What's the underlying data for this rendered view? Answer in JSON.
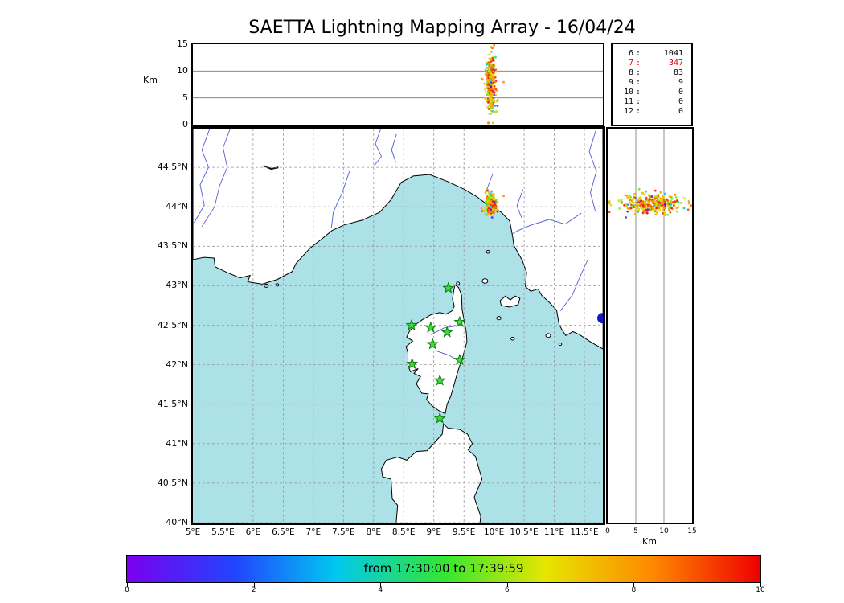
{
  "chart_data": {
    "type": "scatter",
    "title": "SAETTA Lightning Mapping Array - 16/04/24",
    "colorbar_label": "from 17:30:00 to 17:39:59",
    "colorbar_ticks": [
      "0",
      "2",
      "4",
      "6",
      "8",
      "10"
    ],
    "time_color_range": [
      0,
      10
    ],
    "axes": {
      "lon": [
        5,
        11.807
      ],
      "lat": [
        40,
        44.99
      ],
      "alt": [
        0,
        15
      ]
    },
    "panels": [
      {
        "id": "alt-lon",
        "x": "longitude_deg_E",
        "y": "altitude_km",
        "xlim": [
          5,
          11.807
        ],
        "ylim": [
          0,
          15
        ],
        "yticks": [
          0,
          5,
          10,
          15
        ]
      },
      {
        "id": "map",
        "x": "longitude_deg_E",
        "y": "latitude_deg_N",
        "xlim": [
          5,
          11.807
        ],
        "ylim": [
          40,
          44.99
        ]
      },
      {
        "id": "alt-lat",
        "x": "altitude_km",
        "y": "latitude_deg_N",
        "xlim": [
          0,
          15
        ],
        "ylim": [
          40,
          44.99
        ],
        "xticks": [
          0,
          5,
          10,
          15
        ]
      }
    ],
    "lightning_cluster": {
      "count": 320,
      "lon_mean": 9.95,
      "lon_std": 0.035,
      "lat_mean": 44.04,
      "lat_std": 0.06,
      "alt_mean_km": 7.9,
      "alt_std_km": 2.7,
      "alt_min_km": 0.3,
      "alt_max_km": 14.8,
      "t_mix": [
        {
          "p": 0.12,
          "lo": 0,
          "hi": 5.5
        },
        {
          "p": 0.6,
          "lo": 5.5,
          "hi": 8.5
        },
        {
          "p": 0.28,
          "lo": 8.5,
          "hi": 10
        }
      ]
    },
    "source_counts_by_min_stations": [
      {
        "label": "6",
        "value": "1041",
        "highlight": false
      },
      {
        "label": "7",
        "value": "347",
        "highlight": true
      },
      {
        "label": "8",
        "value": "83",
        "highlight": false
      },
      {
        "label": "9",
        "value": "9",
        "highlight": false
      },
      {
        "label": "10",
        "value": "0",
        "highlight": false
      },
      {
        "label": "11",
        "value": "0",
        "highlight": false
      },
      {
        "label": "12",
        "value": "0",
        "highlight": false
      }
    ],
    "stations_lon_lat": [
      [
        9.24,
        42.97
      ],
      [
        8.63,
        42.5
      ],
      [
        8.95,
        42.47
      ],
      [
        9.22,
        42.41
      ],
      [
        9.43,
        42.54
      ],
      [
        8.98,
        42.26
      ],
      [
        8.64,
        42.01
      ],
      [
        9.43,
        42.06
      ],
      [
        9.1,
        41.8
      ],
      [
        9.1,
        41.32
      ]
    ]
  },
  "panels_text": {
    "alt_lon_ylabel": "Km",
    "alt_lat_xlabel": "Km"
  },
  "axis_ticks": {
    "alt": [
      {
        "v": 0,
        "label": "0"
      },
      {
        "v": 5,
        "label": "5"
      },
      {
        "v": 10,
        "label": "10"
      },
      {
        "v": 15,
        "label": "15"
      }
    ],
    "lat": [
      {
        "v": 44.5,
        "label": "44.5°N"
      },
      {
        "v": 44,
        "label": "44°N"
      },
      {
        "v": 43.5,
        "label": "43.5°N"
      },
      {
        "v": 43,
        "label": "43°N"
      },
      {
        "v": 42.5,
        "label": "42.5°N"
      },
      {
        "v": 42,
        "label": "42°N"
      },
      {
        "v": 41.5,
        "label": "41.5°N"
      },
      {
        "v": 41,
        "label": "41°N"
      },
      {
        "v": 40.5,
        "label": "40.5°N"
      },
      {
        "v": 40,
        "label": "40°N"
      }
    ],
    "lon": [
      {
        "v": 5,
        "label": "5°E"
      },
      {
        "v": 5.5,
        "label": "5.5°E"
      },
      {
        "v": 6,
        "label": "6°E"
      },
      {
        "v": 6.5,
        "label": "6.5°E"
      },
      {
        "v": 7,
        "label": "7°E"
      },
      {
        "v": 7.5,
        "label": "7.5°E"
      },
      {
        "v": 8,
        "label": "8°E"
      },
      {
        "v": 8.5,
        "label": "8.5°E"
      },
      {
        "v": 9,
        "label": "9°E"
      },
      {
        "v": 9.5,
        "label": "9.5°E"
      },
      {
        "v": 10,
        "label": "10°E"
      },
      {
        "v": 10.5,
        "label": "10.5°E"
      },
      {
        "v": 11,
        "label": "11°E"
      },
      {
        "v": 11.5,
        "label": "11.5°E"
      }
    ]
  },
  "colorbar": {
    "stops": [
      [
        0,
        "#7a00ee"
      ],
      [
        0.17,
        "#2244ff"
      ],
      [
        0.33,
        "#00c8f0"
      ],
      [
        0.5,
        "#33e633"
      ],
      [
        0.66,
        "#e6e600"
      ],
      [
        0.83,
        "#ff8800"
      ],
      [
        1,
        "#ee0000"
      ]
    ]
  },
  "map": {
    "sea_color": "#ace1e8",
    "land_color": "#ffffff",
    "coast_color": "#000000",
    "grid_color": "#999999",
    "station_fill": "#3ddc3d",
    "station_edge": "#0e7a0e",
    "lake_color": "#1515c8",
    "coast_mainland": [
      [
        5.0,
        43.33
      ],
      [
        5.18,
        43.36
      ],
      [
        5.35,
        43.35
      ],
      [
        5.37,
        43.24
      ],
      [
        5.56,
        43.17
      ],
      [
        5.78,
        43.1
      ],
      [
        5.95,
        43.13
      ],
      [
        5.91,
        43.05
      ],
      [
        6.15,
        43.02
      ],
      [
        6.4,
        43.08
      ],
      [
        6.65,
        43.18
      ],
      [
        6.71,
        43.28
      ],
      [
        6.95,
        43.48
      ],
      [
        7.12,
        43.58
      ],
      [
        7.31,
        43.7
      ],
      [
        7.51,
        43.77
      ],
      [
        7.81,
        43.83
      ],
      [
        8.1,
        43.93
      ],
      [
        8.29,
        44.09
      ],
      [
        8.46,
        44.31
      ],
      [
        8.66,
        44.39
      ],
      [
        8.93,
        44.41
      ],
      [
        9.23,
        44.32
      ],
      [
        9.51,
        44.22
      ],
      [
        9.71,
        44.13
      ],
      [
        9.83,
        44.06
      ],
      [
        9.9,
        44.01
      ],
      [
        10.04,
        43.97
      ],
      [
        10.12,
        43.93
      ],
      [
        10.26,
        43.82
      ],
      [
        10.31,
        43.62
      ],
      [
        10.33,
        43.51
      ],
      [
        10.47,
        43.32
      ],
      [
        10.54,
        43.17
      ],
      [
        10.52,
        42.99
      ],
      [
        10.61,
        42.93
      ],
      [
        10.73,
        42.96
      ],
      [
        10.79,
        42.88
      ],
      [
        10.93,
        42.78
      ],
      [
        11.04,
        42.69
      ],
      [
        11.08,
        42.51
      ],
      [
        11.13,
        42.44
      ],
      [
        11.19,
        42.37
      ],
      [
        11.31,
        42.42
      ],
      [
        11.42,
        42.38
      ],
      [
        11.62,
        42.28
      ],
      [
        11.81,
        42.2
      ]
    ],
    "coast_corsica": [
      [
        9.35,
        43.01
      ],
      [
        9.41,
        42.98
      ],
      [
        9.46,
        42.88
      ],
      [
        9.47,
        42.7
      ],
      [
        9.5,
        42.57
      ],
      [
        9.54,
        42.41
      ],
      [
        9.55,
        42.29
      ],
      [
        9.48,
        42.1
      ],
      [
        9.4,
        41.92
      ],
      [
        9.33,
        41.73
      ],
      [
        9.28,
        41.6
      ],
      [
        9.22,
        41.5
      ],
      [
        9.19,
        41.38
      ],
      [
        9.08,
        41.42
      ],
      [
        8.97,
        41.48
      ],
      [
        8.88,
        41.56
      ],
      [
        8.91,
        41.63
      ],
      [
        8.8,
        41.64
      ],
      [
        8.71,
        41.76
      ],
      [
        8.78,
        41.85
      ],
      [
        8.67,
        41.89
      ],
      [
        8.74,
        41.95
      ],
      [
        8.61,
        41.91
      ],
      [
        8.57,
        42.0
      ],
      [
        8.57,
        42.15
      ],
      [
        8.54,
        42.23
      ],
      [
        8.65,
        42.3
      ],
      [
        8.55,
        42.35
      ],
      [
        8.6,
        42.43
      ],
      [
        8.72,
        42.52
      ],
      [
        8.81,
        42.57
      ],
      [
        8.95,
        42.63
      ],
      [
        9.1,
        42.66
      ],
      [
        9.2,
        42.64
      ],
      [
        9.3,
        42.68
      ],
      [
        9.34,
        42.74
      ],
      [
        9.31,
        42.83
      ],
      [
        9.33,
        42.93
      ]
    ],
    "coast_sardinia": [
      [
        8.37,
        39.95
      ],
      [
        8.4,
        40.22
      ],
      [
        8.31,
        40.3
      ],
      [
        8.29,
        40.55
      ],
      [
        8.15,
        40.58
      ],
      [
        8.13,
        40.68
      ],
      [
        8.21,
        40.79
      ],
      [
        8.4,
        40.83
      ],
      [
        8.55,
        40.79
      ],
      [
        8.71,
        40.9
      ],
      [
        8.89,
        40.91
      ],
      [
        9.14,
        41.12
      ],
      [
        9.16,
        41.25
      ],
      [
        9.23,
        41.2
      ],
      [
        9.31,
        41.19
      ],
      [
        9.43,
        41.18
      ],
      [
        9.56,
        41.12
      ],
      [
        9.64,
        41.0
      ],
      [
        9.57,
        40.92
      ],
      [
        9.69,
        40.84
      ],
      [
        9.8,
        40.55
      ],
      [
        9.67,
        40.32
      ],
      [
        9.78,
        40.08
      ],
      [
        9.76,
        39.95
      ]
    ],
    "coast_elba": [
      [
        10.1,
        42.81
      ],
      [
        10.19,
        42.87
      ],
      [
        10.27,
        42.82
      ],
      [
        10.35,
        42.87
      ],
      [
        10.43,
        42.84
      ],
      [
        10.4,
        42.76
      ],
      [
        10.25,
        42.73
      ],
      [
        10.12,
        42.75
      ]
    ],
    "small_islands": [
      [
        9.4,
        43.03,
        2
      ],
      [
        9.85,
        43.06,
        3.5
      ],
      [
        9.9,
        43.43,
        2.2
      ],
      [
        10.08,
        42.59,
        2.6
      ],
      [
        10.31,
        42.33,
        2.2
      ],
      [
        10.9,
        42.37,
        3
      ],
      [
        11.1,
        42.26,
        1.8
      ],
      [
        6.22,
        43.0,
        2.5
      ],
      [
        6.4,
        43.01,
        2
      ]
    ],
    "lake_circle": [
      11.8,
      42.59,
      6.5
    ],
    "lake_line": [
      [
        6.17,
        44.52
      ],
      [
        6.3,
        44.48
      ],
      [
        6.42,
        44.5
      ]
    ],
    "rivers": [
      {
        "c": "#4a5bd8",
        "p": [
          [
            5.28,
            44.99
          ],
          [
            5.15,
            44.72
          ],
          [
            5.26,
            44.5
          ],
          [
            5.12,
            44.28
          ],
          [
            5.19,
            44.02
          ],
          [
            5.02,
            43.8
          ]
        ]
      },
      {
        "c": "#7a4fd0",
        "p": [
          [
            5.62,
            44.99
          ],
          [
            5.5,
            44.75
          ],
          [
            5.57,
            44.5
          ],
          [
            5.44,
            44.26
          ],
          [
            5.36,
            44.0
          ],
          [
            5.15,
            43.75
          ]
        ]
      },
      {
        "c": "#4a5bd8",
        "p": [
          [
            7.6,
            44.45
          ],
          [
            7.48,
            44.18
          ],
          [
            7.33,
            43.93
          ],
          [
            7.3,
            43.73
          ]
        ]
      },
      {
        "c": "#7a4fd0",
        "p": [
          [
            8.12,
            44.99
          ],
          [
            8.03,
            44.8
          ],
          [
            8.13,
            44.64
          ],
          [
            8.01,
            44.52
          ]
        ]
      },
      {
        "c": "#4a5bd8",
        "p": [
          [
            8.38,
            44.92
          ],
          [
            8.3,
            44.72
          ],
          [
            8.37,
            44.56
          ]
        ]
      },
      {
        "c": "#7a4fd0",
        "p": [
          [
            9.98,
            44.42
          ],
          [
            9.89,
            44.24
          ],
          [
            9.95,
            44.1
          ]
        ]
      },
      {
        "c": "#4a5bd8",
        "p": [
          [
            10.48,
            44.22
          ],
          [
            10.38,
            44.01
          ],
          [
            10.46,
            43.86
          ]
        ]
      },
      {
        "c": "#4a5bd8",
        "p": [
          [
            11.45,
            43.92
          ],
          [
            11.18,
            43.78
          ],
          [
            10.92,
            43.84
          ],
          [
            10.62,
            43.77
          ],
          [
            10.4,
            43.7
          ],
          [
            10.31,
            43.66
          ]
        ]
      },
      {
        "c": "#7a4fd0",
        "p": [
          [
            11.55,
            43.32
          ],
          [
            11.42,
            43.1
          ],
          [
            11.3,
            42.88
          ],
          [
            11.1,
            42.68
          ]
        ]
      },
      {
        "c": "#4a5bd8",
        "p": [
          [
            11.7,
            44.99
          ],
          [
            11.58,
            44.7
          ],
          [
            11.7,
            44.45
          ],
          [
            11.6,
            44.18
          ],
          [
            11.68,
            43.95
          ]
        ]
      },
      {
        "c": "#4a5bd8",
        "p": [
          [
            8.95,
            42.38
          ],
          [
            9.18,
            42.47
          ],
          [
            9.46,
            42.5
          ]
        ]
      },
      {
        "c": "#4a5bd8",
        "p": [
          [
            9.02,
            42.18
          ],
          [
            9.25,
            42.12
          ],
          [
            9.45,
            42.03
          ]
        ]
      }
    ]
  }
}
